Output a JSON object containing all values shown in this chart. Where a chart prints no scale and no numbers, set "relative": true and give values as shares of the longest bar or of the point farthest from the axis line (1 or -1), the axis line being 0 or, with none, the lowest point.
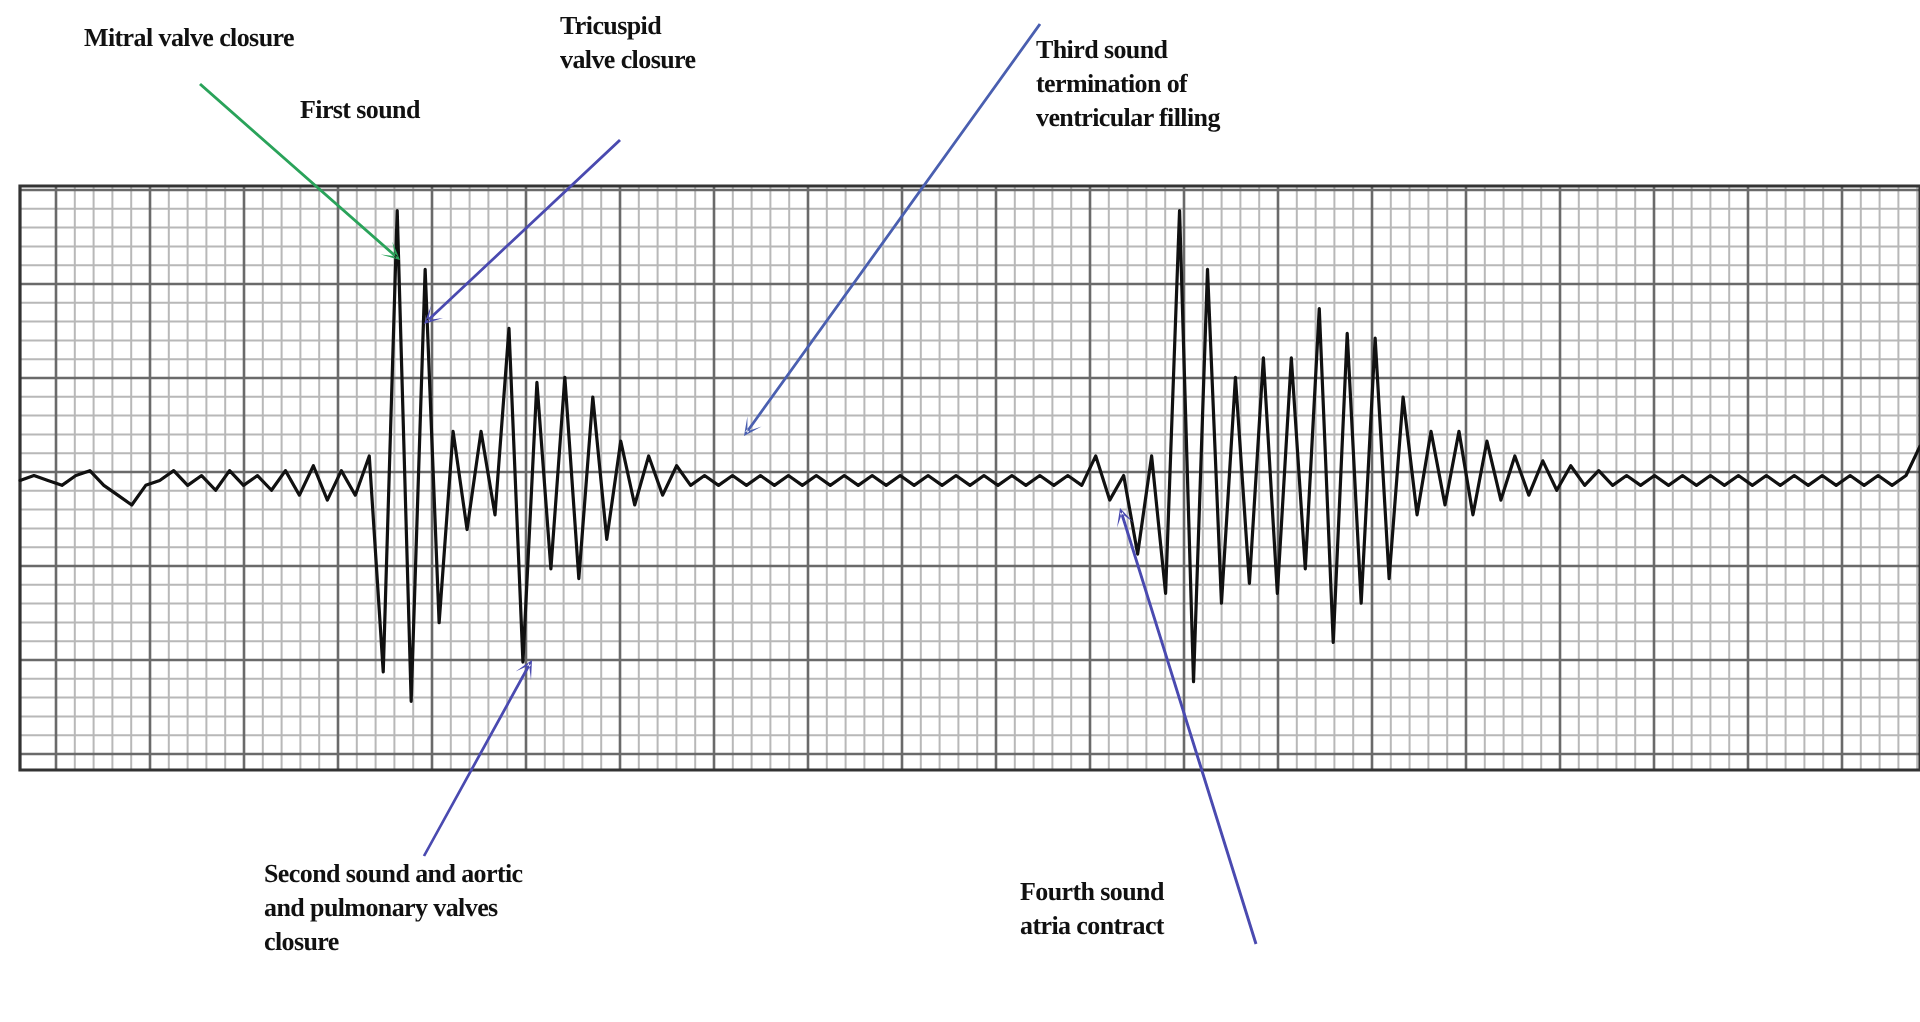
{
  "chart_data": {
    "type": "line",
    "relative": true,
    "grid": true,
    "marker": "none",
    "line_style": "solid",
    "categories": [
      null,
      null,
      null,
      null,
      null,
      null,
      null,
      null,
      null,
      null,
      null,
      null,
      null,
      null,
      null,
      null,
      null,
      null,
      null,
      null,
      null,
      null,
      null,
      null,
      null,
      null,
      null,
      null,
      null,
      null,
      null,
      null,
      null,
      null,
      null,
      null,
      null,
      null,
      null,
      null,
      null,
      null,
      null,
      null,
      null,
      null,
      null,
      null,
      null,
      null,
      null,
      null,
      null,
      null,
      null,
      null,
      null,
      null,
      null,
      null,
      null,
      null,
      null,
      null,
      null,
      null,
      null,
      null,
      null,
      null,
      null,
      null,
      null,
      null,
      null,
      null,
      null,
      null,
      null,
      null,
      null,
      null,
      null,
      null,
      null,
      null,
      null,
      null,
      null,
      null,
      null,
      null,
      null,
      null,
      null,
      null,
      null,
      null,
      null,
      null,
      null,
      null,
      null,
      null,
      null,
      null,
      null,
      null,
      null,
      null,
      null,
      null,
      null,
      null,
      null,
      null,
      null,
      null,
      null,
      null,
      null,
      null,
      null,
      null,
      null,
      null,
      null,
      null,
      null,
      null,
      null,
      null,
      null,
      null,
      null,
      null,
      null
    ],
    "series": [
      {
        "color": "#111111",
        "values": [
          0.45,
          0.46,
          0.45,
          0.44,
          0.46,
          0.47,
          0.44,
          0.42,
          0.4,
          0.44,
          0.45,
          0.47,
          0.44,
          0.46,
          0.43,
          0.47,
          0.44,
          0.46,
          0.43,
          0.47,
          0.42,
          0.48,
          0.41,
          0.47,
          0.42,
          0.5,
          0.06,
          1.0,
          0.0,
          0.88,
          0.16,
          0.55,
          0.35,
          0.55,
          0.38,
          0.76,
          0.08,
          0.65,
          0.27,
          0.66,
          0.25,
          0.62,
          0.33,
          0.53,
          0.4,
          0.5,
          0.42,
          0.48,
          0.44,
          0.46,
          0.44,
          0.46,
          0.44,
          0.46,
          0.44,
          0.46,
          0.44,
          0.46,
          0.44,
          0.46,
          0.44,
          0.46,
          0.44,
          0.46,
          0.44,
          0.46,
          0.44,
          0.46,
          0.44,
          0.46,
          0.44,
          0.46,
          0.44,
          0.46,
          0.44,
          0.46,
          0.44,
          0.5,
          0.41,
          0.46,
          0.3,
          0.5,
          0.22,
          1.0,
          0.04,
          0.88,
          0.2,
          0.66,
          0.24,
          0.7,
          0.22,
          0.7,
          0.27,
          0.8,
          0.12,
          0.75,
          0.2,
          0.74,
          0.25,
          0.62,
          0.38,
          0.55,
          0.4,
          0.55,
          0.38,
          0.53,
          0.41,
          0.5,
          0.42,
          0.49,
          0.43,
          0.48,
          0.44,
          0.47,
          0.44,
          0.46,
          0.44,
          0.46,
          0.44,
          0.46,
          0.44,
          0.46,
          0.44,
          0.46,
          0.44,
          0.46,
          0.44,
          0.46,
          0.44,
          0.46,
          0.44,
          0.46,
          0.44,
          0.46,
          0.44,
          0.46,
          0.52
        ]
      }
    ],
    "annotations": [
      "Mitral valve closure",
      "First sound",
      "Tricuspid\nvalve closure",
      "Third sound\ntermination of\nventricular filling",
      "Second sound and aortic\nand pulmonary valves\nclosure",
      "Fourth sound\natria contract"
    ]
  }
}
